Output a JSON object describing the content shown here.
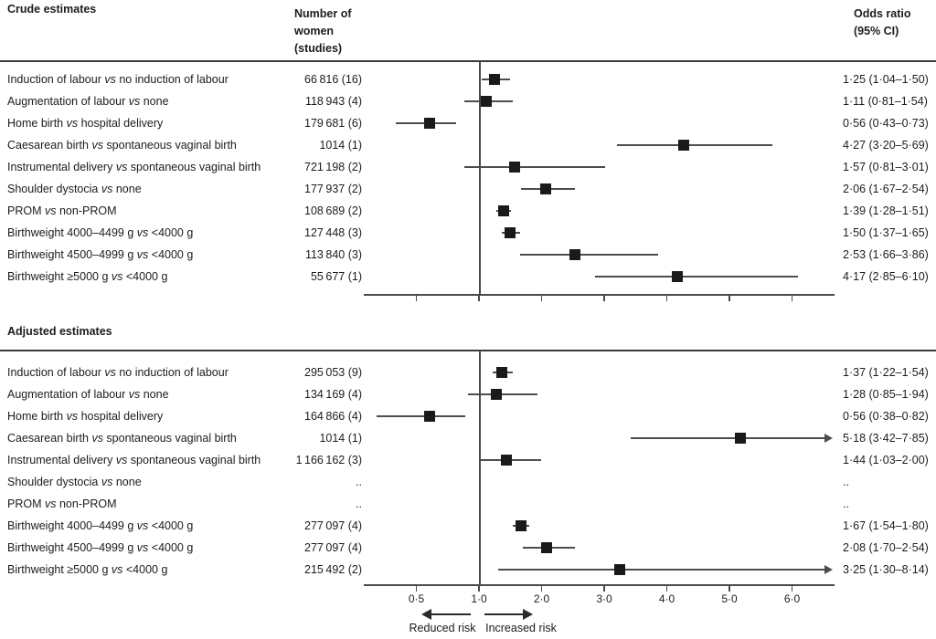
{
  "header": {
    "crude_title": "Crude estimates",
    "adjusted_title": "Adjusted estimates",
    "n_col_header_lines": [
      "Number of",
      "women",
      "(studies)"
    ],
    "or_col_header_lines": [
      "Odds ratio",
      "(95% CI)"
    ]
  },
  "footer": {
    "reduced_label": "Reduced risk",
    "increased_label": "Increased risk"
  },
  "colors": {
    "text": "#1c1c1c",
    "axis_line": "#4a4a4a",
    "rule": "#3a3a3a",
    "marker": "#1a1a1a"
  },
  "chart_data": [
    {
      "type": "forest",
      "title": "Crude estimates",
      "x_axis": {
        "ticks": [
          0.5,
          1,
          2,
          3,
          4,
          5,
          6
        ],
        "tick_labels": [
          "0·5",
          "1·0",
          "2·0",
          "3·0",
          "4·0",
          "5·0",
          "6·0"
        ],
        "reference_line": 1.0,
        "scale_note": "linear above 1, reciprocal below 1",
        "show_tick_labels": false,
        "xlim_max": 6.65
      },
      "rows": [
        {
          "label": "Induction of labour vs no induction of labour",
          "n": "66 816 (16)",
          "or": 1.25,
          "lo": 1.04,
          "hi": 1.5,
          "or_text": "1·25 (1·04–1·50)"
        },
        {
          "label": "Augmentation of labour vs none",
          "n": "118 943 (4)",
          "or": 1.11,
          "lo": 0.81,
          "hi": 1.54,
          "or_text": "1·11 (0·81–1·54)"
        },
        {
          "label": "Home birth vs hospital delivery",
          "n": "179 681 (6)",
          "or": 0.56,
          "lo": 0.43,
          "hi": 0.73,
          "or_text": "0·56 (0·43–0·73)"
        },
        {
          "label": "Caesarean birth vs spontaneous vaginal birth",
          "n": "1014 (1)",
          "or": 4.27,
          "lo": 3.2,
          "hi": 5.69,
          "or_text": "4·27 (3·20–5·69)"
        },
        {
          "label": "Instrumental delivery vs spontaneous vaginal birth",
          "n": "721 198 (2)",
          "or": 1.57,
          "lo": 0.81,
          "hi": 3.01,
          "or_text": "1·57 (0·81–3·01)"
        },
        {
          "label": "Shoulder dystocia vs none",
          "n": "177 937 (2)",
          "or": 2.06,
          "lo": 1.67,
          "hi": 2.54,
          "or_text": "2·06 (1·67–2·54)"
        },
        {
          "label": "PROM vs non-PROM",
          "n": "108 689 (2)",
          "or": 1.39,
          "lo": 1.28,
          "hi": 1.51,
          "or_text": "1·39 (1·28–1·51)"
        },
        {
          "label": "Birthweight 4000–4499 g vs <4000 g",
          "n": "127 448 (3)",
          "or": 1.5,
          "lo": 1.37,
          "hi": 1.65,
          "or_text": "1·50 (1·37–1·65)"
        },
        {
          "label": "Birthweight 4500–4999 g vs <4000 g",
          "n": "113 840 (3)",
          "or": 2.53,
          "lo": 1.66,
          "hi": 3.86,
          "or_text": "2·53 (1·66–3·86)"
        },
        {
          "label": "Birthweight ≥5000 g vs <4000 g",
          "n": "55 677 (1)",
          "or": 4.17,
          "lo": 2.85,
          "hi": 6.1,
          "or_text": "4·17 (2·85–6·10)"
        }
      ]
    },
    {
      "type": "forest",
      "title": "Adjusted estimates",
      "x_axis": {
        "ticks": [
          0.5,
          1,
          2,
          3,
          4,
          5,
          6
        ],
        "tick_labels": [
          "0·5",
          "1·0",
          "2·0",
          "3·0",
          "4·0",
          "5·0",
          "6·0"
        ],
        "reference_line": 1.0,
        "scale_note": "linear above 1, reciprocal below 1",
        "show_tick_labels": true,
        "xlim_max": 6.65
      },
      "rows": [
        {
          "label": "Induction of labour vs no induction of labour",
          "n": "295 053 (9)",
          "or": 1.37,
          "lo": 1.22,
          "hi": 1.54,
          "or_text": "1·37 (1·22–1·54)"
        },
        {
          "label": "Augmentation of labour vs none",
          "n": "134 169 (4)",
          "or": 1.28,
          "lo": 0.85,
          "hi": 1.94,
          "or_text": "1·28 (0·85–1·94)"
        },
        {
          "label": "Home birth vs hospital delivery",
          "n": "164 866 (4)",
          "or": 0.56,
          "lo": 0.38,
          "hi": 0.82,
          "or_text": "0·56 (0·38–0·82)"
        },
        {
          "label": "Caesarean birth vs spontaneous vaginal birth",
          "n": "1014 (1)",
          "or": 5.18,
          "lo": 3.42,
          "hi": 7.85,
          "or_text": "5·18 (3·42–7·85)"
        },
        {
          "label": "Instrumental delivery vs spontaneous vaginal birth",
          "n": "1 166 162 (3)",
          "or": 1.44,
          "lo": 1.03,
          "hi": 2.0,
          "or_text": "1·44 (1·03–2·00)"
        },
        {
          "label": "Shoulder dystocia vs none",
          "n": "..",
          "or": null,
          "lo": null,
          "hi": null,
          "or_text": ".."
        },
        {
          "label": "PROM vs non-PROM",
          "n": "..",
          "or": null,
          "lo": null,
          "hi": null,
          "or_text": ".."
        },
        {
          "label": "Birthweight 4000–4499 g vs <4000 g",
          "n": "277 097 (4)",
          "or": 1.67,
          "lo": 1.54,
          "hi": 1.8,
          "or_text": "1·67 (1·54–1·80)"
        },
        {
          "label": "Birthweight 4500–4999 g vs <4000 g",
          "n": "277 097 (4)",
          "or": 2.08,
          "lo": 1.7,
          "hi": 2.54,
          "or_text": "2·08 (1·70–2·54)"
        },
        {
          "label": "Birthweight ≥5000 g vs <4000 g",
          "n": "215 492 (2)",
          "or": 3.25,
          "lo": 1.3,
          "hi": 8.14,
          "or_text": "3·25 (1·30–8·14)"
        }
      ]
    }
  ]
}
